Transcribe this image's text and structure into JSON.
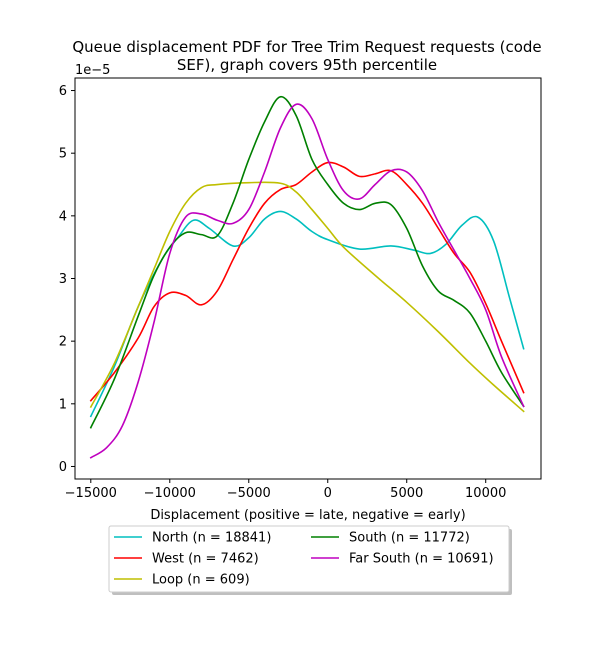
{
  "chart_data": {
    "type": "line",
    "title": "Queue displacement PDF for Tree Trim Request  requests (code SEF), graph covers 95th percentile",
    "title_lines": [
      "Queue displacement PDF for Tree Trim Request  requests (code",
      "SEF), graph covers 95th percentile"
    ],
    "xlabel": "Displacement (positive = late, negative = early)",
    "ylabel": "",
    "y_exponent": "1e−5",
    "xlim": [
      -16000,
      13500
    ],
    "ylim": [
      -0.2,
      6.2
    ],
    "x_ticks": [
      -15000,
      -10000,
      -5000,
      0,
      5000,
      10000
    ],
    "x_tick_labels": [
      "−15000",
      "−10000",
      "−5000",
      "0",
      "5000",
      "10000"
    ],
    "y_ticks": [
      0,
      1,
      2,
      3,
      4,
      5,
      6
    ],
    "y_tick_labels": [
      "0",
      "1",
      "2",
      "3",
      "4",
      "5",
      "6"
    ],
    "legend_location": "below plot, two columns",
    "series": [
      {
        "name": "North (n = 18841)",
        "color": "#00bfbf",
        "x": [
          -15000,
          -13500,
          -12000,
          -10500,
          -9500,
          -8500,
          -7500,
          -6000,
          -5000,
          -4000,
          -3000,
          -2000,
          -1000,
          0,
          2000,
          4000,
          5500,
          6500,
          7500,
          8500,
          9500,
          10500,
          11500,
          12400
        ],
        "y": [
          0.8,
          1.6,
          2.55,
          3.3,
          3.65,
          3.93,
          3.8,
          3.52,
          3.65,
          3.95,
          4.07,
          3.95,
          3.75,
          3.62,
          3.47,
          3.52,
          3.45,
          3.4,
          3.55,
          3.85,
          3.98,
          3.6,
          2.7,
          1.88
        ]
      },
      {
        "name": "West (n = 7462)",
        "color": "#ff0000",
        "x": [
          -15000,
          -13500,
          -12000,
          -11000,
          -10000,
          -9000,
          -8000,
          -7000,
          -6000,
          -5000,
          -4000,
          -3000,
          -2000,
          -1000,
          0,
          1000,
          2000,
          3000,
          4000,
          5000,
          6000,
          7000,
          8000,
          9000,
          10000,
          11000,
          12400
        ],
        "y": [
          1.05,
          1.5,
          2.05,
          2.55,
          2.77,
          2.73,
          2.58,
          2.8,
          3.3,
          3.8,
          4.2,
          4.42,
          4.5,
          4.7,
          4.85,
          4.78,
          4.63,
          4.67,
          4.72,
          4.5,
          4.2,
          3.8,
          3.4,
          3.1,
          2.6,
          2.0,
          1.18
        ]
      },
      {
        "name": "Loop (n = 609)",
        "color": "#bfbf00",
        "x": [
          -15000,
          -13500,
          -12000,
          -11000,
          -10000,
          -9000,
          -8000,
          -7000,
          -5000,
          -3000,
          -2000,
          -1000,
          0,
          1000,
          3000,
          5000,
          7000,
          9000,
          10500,
          12400
        ],
        "y": [
          0.95,
          1.65,
          2.55,
          3.15,
          3.75,
          4.2,
          4.45,
          4.5,
          4.53,
          4.52,
          4.38,
          4.1,
          3.8,
          3.5,
          3.05,
          2.62,
          2.15,
          1.65,
          1.3,
          0.88
        ]
      },
      {
        "name": "South (n = 11772)",
        "color": "#008000",
        "x": [
          -15000,
          -13500,
          -12000,
          -11000,
          -10000,
          -9000,
          -8000,
          -7000,
          -6000,
          -5000,
          -4000,
          -3000,
          -2000,
          -1000,
          0,
          1000,
          2000,
          3000,
          4000,
          5000,
          6000,
          7000,
          8000,
          9000,
          10000,
          11000,
          12400
        ],
        "y": [
          0.62,
          1.4,
          2.4,
          3.05,
          3.5,
          3.73,
          3.7,
          3.68,
          4.2,
          4.9,
          5.5,
          5.9,
          5.6,
          4.9,
          4.5,
          4.2,
          4.1,
          4.2,
          4.18,
          3.8,
          3.2,
          2.8,
          2.65,
          2.45,
          2.0,
          1.5,
          0.96
        ]
      },
      {
        "name": "Far South (n = 10691)",
        "color": "#bf00bf",
        "x": [
          -15000,
          -14000,
          -13000,
          -12000,
          -11000,
          -10000,
          -9000,
          -8000,
          -7000,
          -6000,
          -5000,
          -4000,
          -3000,
          -2000,
          -1000,
          0,
          1000,
          2000,
          3000,
          4000,
          5000,
          6000,
          7000,
          8000,
          9000,
          10000,
          11000,
          12400
        ],
        "y": [
          0.14,
          0.3,
          0.65,
          1.35,
          2.3,
          3.4,
          3.98,
          4.03,
          3.93,
          3.88,
          4.1,
          4.7,
          5.4,
          5.78,
          5.55,
          4.9,
          4.4,
          4.27,
          4.5,
          4.72,
          4.7,
          4.4,
          3.9,
          3.45,
          3.0,
          2.5,
          1.75,
          0.96
        ]
      }
    ]
  }
}
